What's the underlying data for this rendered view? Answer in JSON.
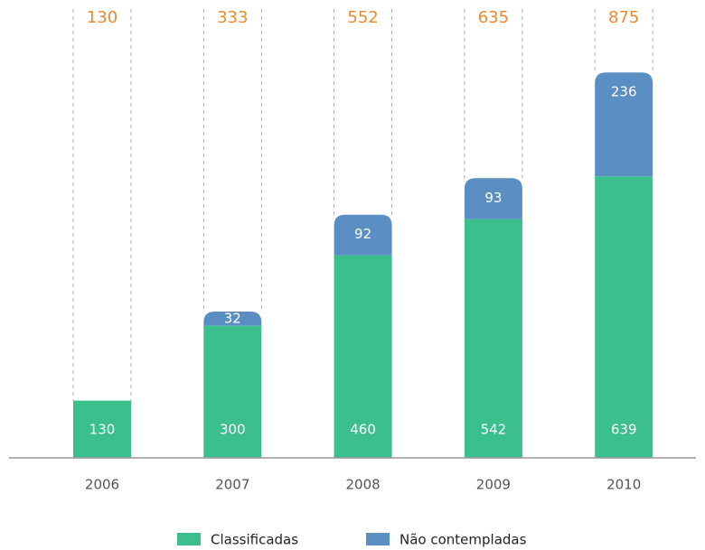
{
  "chart_data": {
    "type": "stacked-bar",
    "categories": [
      "2006",
      "2007",
      "2008",
      "2009",
      "2010"
    ],
    "totals": [
      130,
      333,
      552,
      635,
      875
    ],
    "series": [
      {
        "name": "Classificadas",
        "color": "#3bbf8c",
        "values": [
          130,
          300,
          460,
          542,
          639
        ]
      },
      {
        "name": "Não contempladas",
        "color": "#5b8fc4",
        "values": [
          null,
          32,
          92,
          93,
          236
        ]
      }
    ],
    "ylim": [
      0,
      900
    ]
  }
}
